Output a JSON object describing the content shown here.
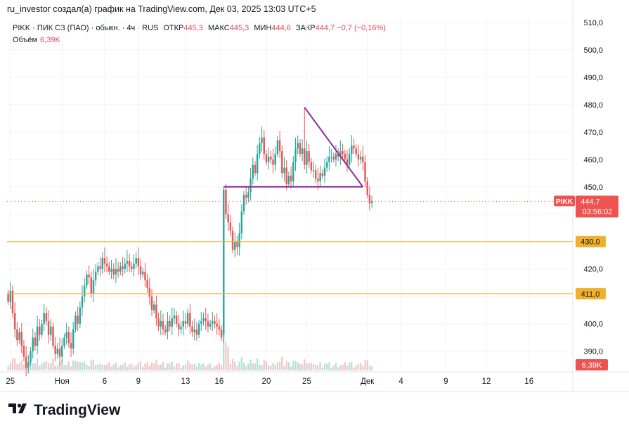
{
  "header": {
    "author_line": "ru_investor создал(а) график на TradingView.com, Дек 03, 2025 13:03 UTC+5"
  },
  "legend": {
    "symbol": "PIKK",
    "name": "ПИК СЗ (ПАО) · обыкн.",
    "interval": "4ч",
    "exchange": "RUS",
    "open_label": "ОТКР",
    "open_value": "445,3",
    "high_label": "МАКС",
    "high_value": "445,3",
    "low_label": "МИН",
    "low_value": "444,6",
    "close_label": "ЗАКР",
    "close_value": "444,7",
    "change": "−0,7 (−0,16%)",
    "volume_label": "Объём",
    "volume_value": "6,39K"
  },
  "price_tag": {
    "symbol": "PIKK",
    "price": "444,7",
    "countdown": "03:56:02"
  },
  "volume_tag": "6,39K",
  "level_tags": [
    "430,0",
    "411,0"
  ],
  "footer": {
    "brand": "TradingView"
  },
  "colors": {
    "up": "#26a69a",
    "down": "#ef5350",
    "level": "#f0b02d",
    "drawing": "#8a2b9a",
    "grid": "#f0f3fa"
  },
  "chart_data": {
    "type": "candlestick",
    "title": "PIKK · ПИК СЗ (ПАО) · обыкн. · 4ч · RUS",
    "ylim": [
      383,
      512
    ],
    "y_ticks": [
      390,
      400,
      410,
      420,
      430,
      440,
      450,
      460,
      470,
      480,
      490,
      500,
      510
    ],
    "y_tick_labels": [
      "390,0",
      "400,0",
      "",
      "420,0",
      "",
      "",
      "450,0",
      "460,0",
      "470,0",
      "480,0",
      "490,0",
      "500,0",
      "510,0"
    ],
    "x_tick_labels": [
      {
        "label": "25",
        "candle_index": 1
      },
      {
        "label": "Ноя",
        "candle_index": 24
      },
      {
        "label": "6",
        "candle_index": 43
      },
      {
        "label": "9",
        "candle_index": 58
      },
      {
        "label": "13",
        "candle_index": 79
      },
      {
        "label": "16",
        "candle_index": 94
      },
      {
        "label": "20",
        "candle_index": 115
      },
      {
        "label": "25",
        "candle_index": 133
      },
      {
        "label": "Дек",
        "candle_index": 160
      },
      {
        "label": "4",
        "candle_index": 175
      },
      {
        "label": "9",
        "candle_index": 195
      },
      {
        "label": "12",
        "candle_index": 213
      },
      {
        "label": "16",
        "candle_index": 232
      }
    ],
    "candle_count_on_axis": 252,
    "candles_close": [
      408,
      412,
      404,
      398,
      394,
      397,
      392,
      388,
      384,
      386,
      390,
      395,
      392,
      399,
      396,
      400,
      404,
      401,
      396,
      399,
      392,
      389,
      391,
      388,
      392,
      395,
      397,
      393,
      391,
      398,
      403,
      400,
      406,
      410,
      414,
      418,
      417,
      411,
      416,
      419,
      421,
      420,
      424,
      422,
      421,
      419,
      420,
      418,
      420,
      419,
      421,
      420,
      422,
      423,
      421,
      420,
      422,
      424,
      421,
      418,
      419,
      416,
      413,
      410,
      405,
      407,
      402,
      399,
      401,
      398,
      397,
      401,
      399,
      402,
      403,
      400,
      398,
      399,
      401,
      400,
      404,
      399,
      397,
      398,
      396,
      400,
      401,
      402,
      401,
      399,
      400,
      401,
      400,
      399,
      398,
      395,
      449,
      440,
      437,
      434,
      427,
      430,
      428,
      433,
      441,
      447,
      446,
      448,
      453,
      458,
      455,
      462,
      466,
      468,
      462,
      459,
      461,
      460,
      458,
      462,
      467,
      463,
      455,
      457,
      451,
      454,
      452,
      459,
      464,
      466,
      462,
      464,
      458,
      463,
      459,
      456,
      456,
      453,
      452,
      455,
      454,
      457,
      459,
      461,
      461,
      460,
      462,
      461,
      463,
      462,
      460,
      458,
      462,
      465,
      464,
      462,
      460,
      461,
      459,
      452,
      447,
      444,
      444.7
    ],
    "volume_note": "volume bars at bottom, last bar 6,39K",
    "horizontal_levels": [
      430.0,
      411.0
    ],
    "current_price": 444.7,
    "drawings": [
      {
        "type": "trendline",
        "from": {
          "candle_index": 132,
          "price": 479
        },
        "to": {
          "candle_index": 158,
          "price": 450
        }
      },
      {
        "type": "horizontal_segment",
        "from": {
          "candle_index": 96,
          "price": 450
        },
        "to": {
          "candle_index": 158,
          "price": 450
        }
      }
    ]
  }
}
